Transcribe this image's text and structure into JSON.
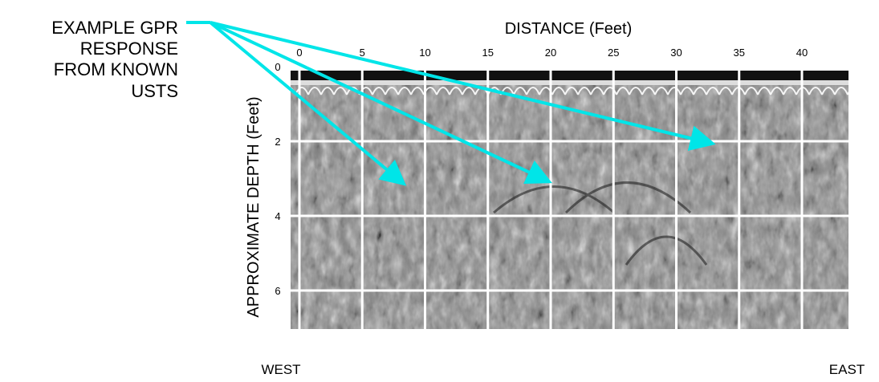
{
  "annotation": {
    "lines": [
      "EXAMPLE GPR",
      "RESPONSE",
      "FROM KNOWN",
      "USTS"
    ]
  },
  "x_axis": {
    "title": "DISTANCE (Feet)",
    "ticks": [
      0,
      5,
      10,
      15,
      20,
      25,
      30,
      35,
      40
    ]
  },
  "y_axis": {
    "title": "APPROXIMATE DEPTH (Feet)",
    "ticks": [
      0,
      2,
      4,
      6
    ]
  },
  "directions": {
    "west": "WEST",
    "east": "EAST"
  }
}
